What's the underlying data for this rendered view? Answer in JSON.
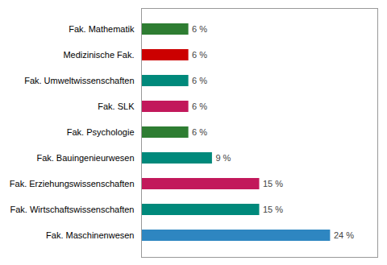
{
  "chart_data": {
    "type": "bar",
    "orientation": "horizontal",
    "categories": [
      "Fak. Maschinenwesen",
      "Fak. Wirtschaftswissenschaften",
      "Fak. Erziehungswissenschaften",
      "Fak. Bauingenieurwesen",
      "Fak. Psychologie",
      "Fak. SLK",
      "Fak. Umweltwissenschaften",
      "Medizinische Fak.",
      "Fak. Mathematik"
    ],
    "values": [
      24,
      15,
      15,
      9,
      6,
      6,
      6,
      6,
      6
    ],
    "value_labels": [
      "24 %",
      "15 %",
      "15 %",
      "9 %",
      "6 %",
      "6 %",
      "6 %",
      "6 %",
      "6 %"
    ],
    "colors": [
      "#2e86c1",
      "#00897b",
      "#c2185b",
      "#00897b",
      "#2e7d32",
      "#c2185b",
      "#00897b",
      "#cc0000",
      "#2e7d32"
    ],
    "xlim": [
      0,
      30
    ],
    "xticks": [],
    "grid": false,
    "data_labels": true,
    "tick_labels": "y"
  }
}
